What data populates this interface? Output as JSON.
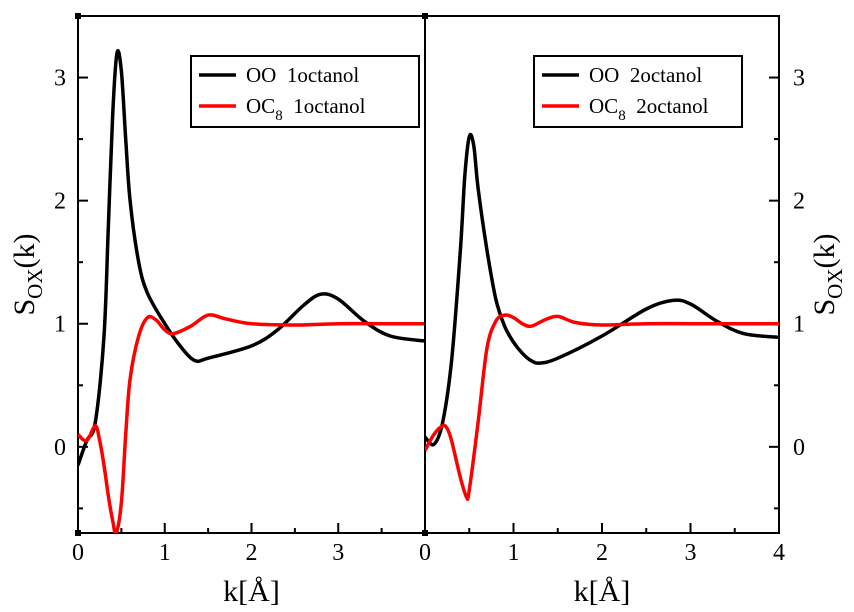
{
  "chart_data": [
    {
      "type": "line",
      "panel": "left",
      "xlabel": "k[Å]",
      "ylabel": "S_OX(k)",
      "xlim": [
        0,
        4
      ],
      "ylim": [
        -0.7,
        3.5
      ],
      "xticks": [
        0,
        1,
        2,
        3
      ],
      "yticks": [
        0,
        1,
        2,
        3
      ],
      "y_axis_side": "left",
      "grid": false,
      "legend": {
        "placement": "top-right"
      },
      "series": [
        {
          "name_main": "OO",
          "name_sub": "",
          "name_tail": "1octanol",
          "color": "#000000",
          "x": [
            0.0,
            0.1,
            0.2,
            0.3,
            0.35,
            0.4,
            0.45,
            0.5,
            0.55,
            0.6,
            0.7,
            0.8,
            1.0,
            1.2,
            1.35,
            1.5,
            2.0,
            2.3,
            2.6,
            2.8,
            3.0,
            3.3,
            3.6,
            4.0
          ],
          "y": [
            -0.15,
            0.05,
            0.2,
            0.9,
            1.8,
            2.7,
            3.2,
            3.05,
            2.5,
            2.0,
            1.5,
            1.25,
            1.0,
            0.8,
            0.7,
            0.72,
            0.82,
            0.95,
            1.15,
            1.24,
            1.2,
            1.02,
            0.9,
            0.86
          ]
        },
        {
          "name_main": "OC",
          "name_sub": "8",
          "name_tail": "1octanol",
          "color": "#ff0000",
          "x": [
            0.0,
            0.1,
            0.2,
            0.25,
            0.3,
            0.35,
            0.4,
            0.44,
            0.5,
            0.55,
            0.6,
            0.7,
            0.8,
            0.9,
            1.0,
            1.1,
            1.3,
            1.5,
            1.7,
            2.0,
            2.5,
            3.0,
            3.5,
            4.0
          ],
          "y": [
            0.1,
            0.05,
            0.17,
            0.05,
            -0.15,
            -0.4,
            -0.6,
            -0.7,
            -0.45,
            0.1,
            0.55,
            0.9,
            1.05,
            1.03,
            0.95,
            0.92,
            0.98,
            1.07,
            1.04,
            1.0,
            0.99,
            1.0,
            1.0,
            1.0
          ]
        }
      ]
    },
    {
      "type": "line",
      "panel": "right",
      "xlabel": "k[Å]",
      "ylabel": "S_OX(k)",
      "xlim": [
        0,
        4
      ],
      "ylim": [
        -0.7,
        3.5
      ],
      "xticks": [
        0,
        1,
        2,
        3,
        4
      ],
      "yticks": [
        0,
        1,
        2,
        3
      ],
      "y_axis_side": "right",
      "grid": false,
      "legend": {
        "placement": "top-right"
      },
      "series": [
        {
          "name_main": "OO",
          "name_sub": "",
          "name_tail": "2octanol",
          "color": "#000000",
          "x": [
            0.0,
            0.1,
            0.2,
            0.3,
            0.4,
            0.45,
            0.5,
            0.55,
            0.6,
            0.7,
            0.8,
            0.9,
            1.0,
            1.1,
            1.2,
            1.3,
            1.5,
            2.0,
            2.5,
            2.8,
            3.0,
            3.3,
            3.6,
            4.0
          ],
          "y": [
            0.08,
            0.02,
            0.2,
            0.7,
            1.6,
            2.2,
            2.52,
            2.45,
            2.1,
            1.6,
            1.2,
            0.98,
            0.85,
            0.76,
            0.7,
            0.68,
            0.72,
            0.9,
            1.12,
            1.19,
            1.16,
            1.02,
            0.92,
            0.89
          ]
        },
        {
          "name_main": "OC",
          "name_sub": "8",
          "name_tail": "2octanol",
          "color": "#ff0000",
          "x": [
            0.0,
            0.1,
            0.2,
            0.25,
            0.3,
            0.4,
            0.47,
            0.5,
            0.6,
            0.7,
            0.8,
            0.9,
            1.0,
            1.1,
            1.2,
            1.35,
            1.5,
            1.7,
            2.0,
            2.5,
            3.0,
            3.5,
            4.0
          ],
          "y": [
            -0.03,
            0.1,
            0.17,
            0.15,
            0.05,
            -0.25,
            -0.41,
            -0.35,
            0.2,
            0.8,
            1.02,
            1.07,
            1.05,
            1.0,
            0.98,
            1.03,
            1.06,
            1.01,
            0.99,
            1.0,
            1.0,
            1.0,
            1.0
          ]
        }
      ]
    }
  ]
}
